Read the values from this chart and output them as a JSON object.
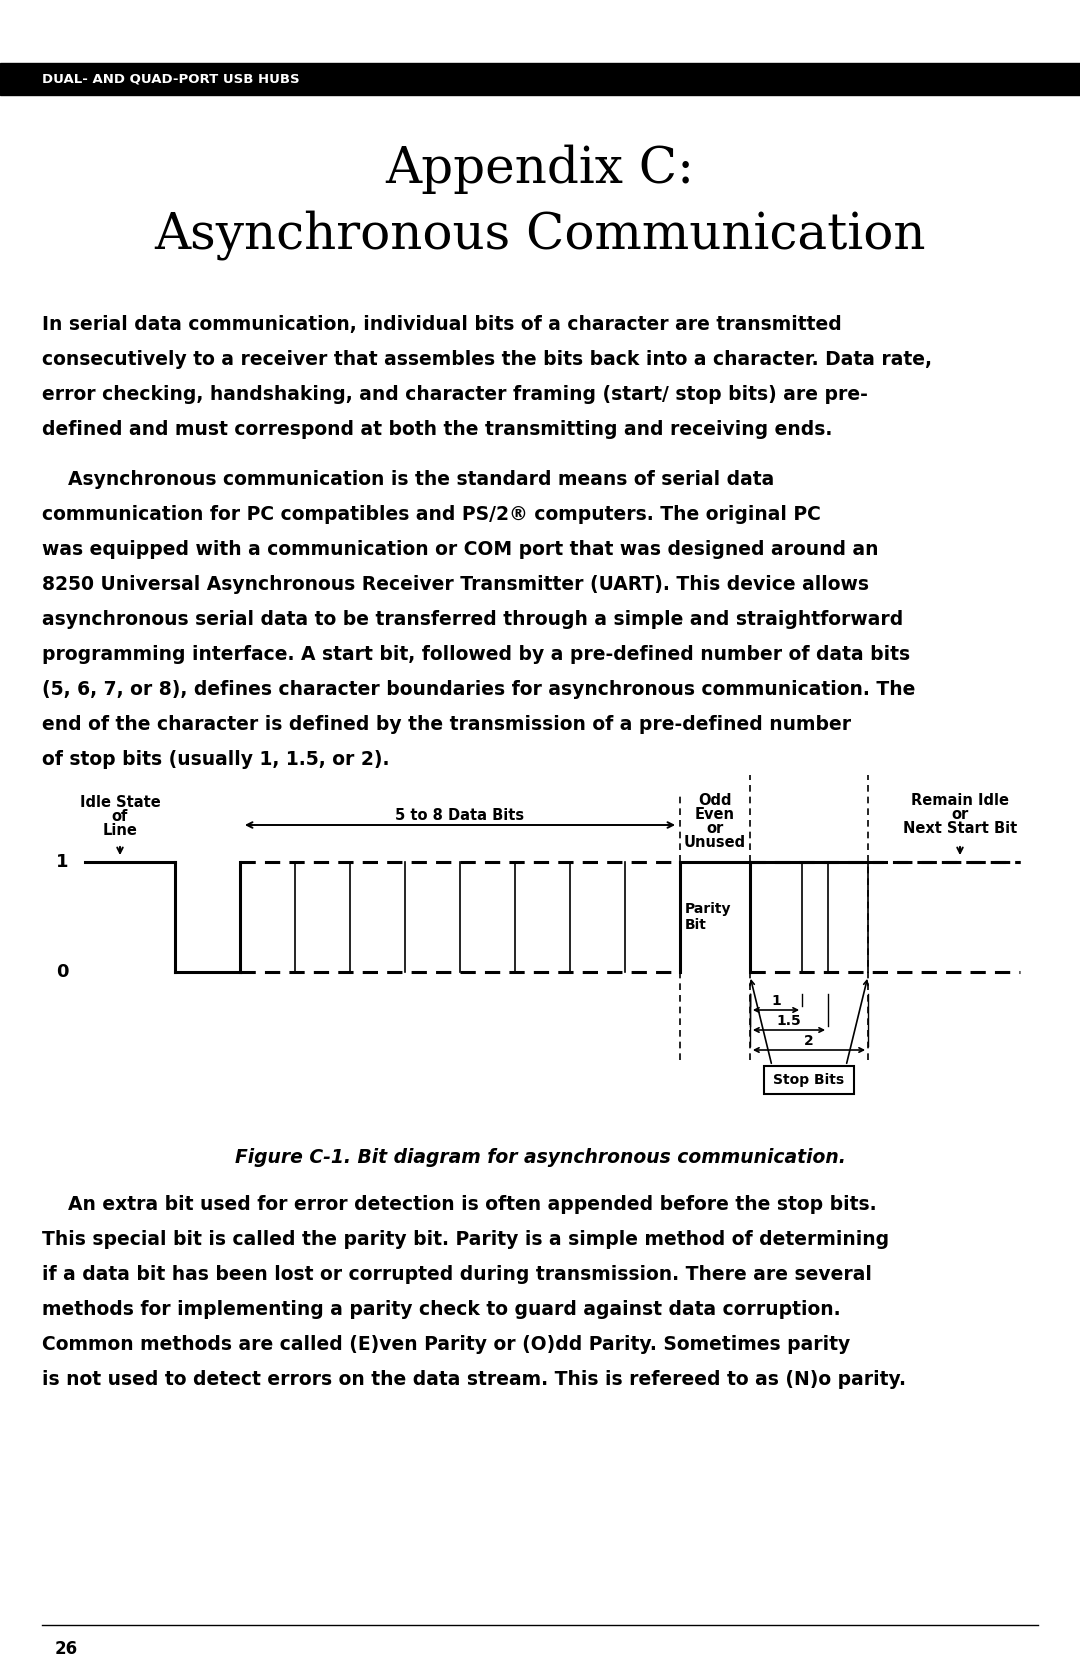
{
  "page_title_line1": "Appendix C:",
  "page_title_line2": "Asynchronous Communication",
  "header_text": "DUAL- AND QUAD-PORT USB HUBS",
  "header_bg": "#000000",
  "header_fg": "#ffffff",
  "figure_caption": "Figure C-1. Bit diagram for asynchronous communication.",
  "footer_text": "26",
  "bg_color": "#ffffff",
  "text_color": "#000000",
  "p1_lines": [
    "In serial data communication, individual bits of a character are transmitted",
    "consecutively to a receiver that assembles the bits back into a character. Data rate,",
    "error checking, handshaking, and character framing (start/ stop bits) are pre-",
    "defined and must correspond at both the transmitting and receiving ends."
  ],
  "p2_lines": [
    "    Asynchronous communication is the standard means of serial data",
    "communication for PC compatibles and PS/2® computers. The original PC",
    "was equipped with a communication or COM port that was designed around an",
    "8250 Universal Asynchronous Receiver Transmitter (UART). This device allows",
    "asynchronous serial data to be transferred through a simple and straightforward",
    "programming interface. A start bit, followed by a pre-defined number of data bits",
    "(5, 6, 7, or 8), defines character boundaries for asynchronous communication. The",
    "end of the character is defined by the transmission of a pre-defined number",
    "of stop bits (usually 1, 1.5, or 2)."
  ],
  "p3_lines": [
    "    An extra bit used for error detection is often appended before the stop bits.",
    "This special bit is called the parity bit. Parity is a simple method of determining",
    "if a data bit has been lost or corrupted during transmission. There are several",
    "methods for implementing a parity check to guard against data corruption.",
    "Common methods are called (E)ven Parity or (O)dd Parity. Sometimes parity",
    "is not used to detect errors on the data stream. This is refereed to as (N)o parity."
  ]
}
